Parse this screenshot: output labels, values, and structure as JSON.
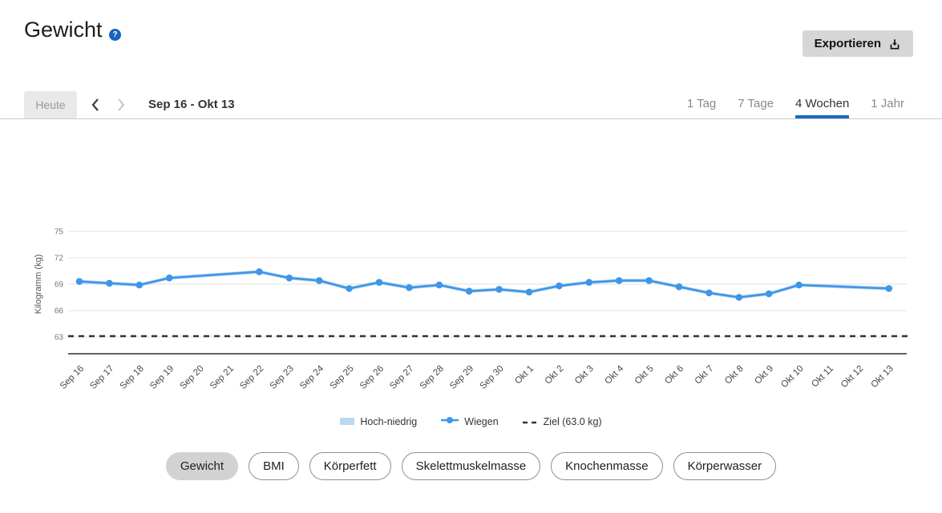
{
  "header": {
    "title": "Gewicht",
    "help_text": "?",
    "export_label": "Exportieren"
  },
  "icons": {
    "help": "question-circle",
    "export": "download-tray",
    "prev": "chevron-left",
    "next": "chevron-right"
  },
  "toolbar": {
    "today_label": "Heute",
    "date_range": "Sep 16 - Okt 13",
    "tabs": [
      {
        "label": "1 Tag",
        "active": false
      },
      {
        "label": "7 Tage",
        "active": false
      },
      {
        "label": "4 Wochen",
        "active": true
      },
      {
        "label": "1 Jahr",
        "active": false
      }
    ]
  },
  "chart_data": {
    "type": "line",
    "title": "",
    "xlabel": "",
    "ylabel": "Kilogramm (kg)",
    "yticks": [
      63,
      66,
      69,
      72,
      75
    ],
    "ylim": [
      61,
      77
    ],
    "grid": true,
    "legend_position": "bottom",
    "categories": [
      "Sep 16",
      "Sep 17",
      "Sep 18",
      "Sep 19",
      "Sep 20",
      "Sep 21",
      "Sep 22",
      "Sep 23",
      "Sep 24",
      "Sep 25",
      "Sep 26",
      "Sep 27",
      "Sep 28",
      "Sep 29",
      "Sep 30",
      "Okt 1",
      "Okt 2",
      "Okt 3",
      "Okt 4",
      "Okt 5",
      "Okt 6",
      "Okt 7",
      "Okt 8",
      "Okt 9",
      "Okt 10",
      "Okt 11",
      "Okt 12",
      "Okt 13"
    ],
    "series": [
      {
        "name": "Wiegen",
        "color": "#3e96e8",
        "values": [
          69.3,
          69.1,
          68.9,
          69.7,
          null,
          null,
          70.4,
          69.7,
          69.4,
          68.5,
          69.2,
          68.6,
          68.9,
          68.2,
          68.4,
          68.1,
          68.8,
          69.2,
          69.4,
          69.4,
          68.7,
          68.0,
          67.5,
          67.9,
          68.9,
          null,
          null,
          68.5
        ]
      }
    ],
    "band": {
      "name": "Hoch-niedrig",
      "color": "#b9d9f3",
      "halfwidth_kg": 0.2
    },
    "target": {
      "label": "Ziel (63.0 kg)",
      "value": 63.0,
      "color": "#333333",
      "style": "dashed"
    },
    "colors": {
      "gridline": "#e2e2e2",
      "axis": "#4a4a4a",
      "tick_text": "#777777",
      "x_label_text": "#4a4a4a"
    }
  },
  "metric_pills": [
    {
      "label": "Gewicht",
      "active": true
    },
    {
      "label": "BMI",
      "active": false
    },
    {
      "label": "Körperfett",
      "active": false
    },
    {
      "label": "Skelettmuskelmasse",
      "active": false
    },
    {
      "label": "Knochenmasse",
      "active": false
    },
    {
      "label": "Körperwasser",
      "active": false
    }
  ]
}
